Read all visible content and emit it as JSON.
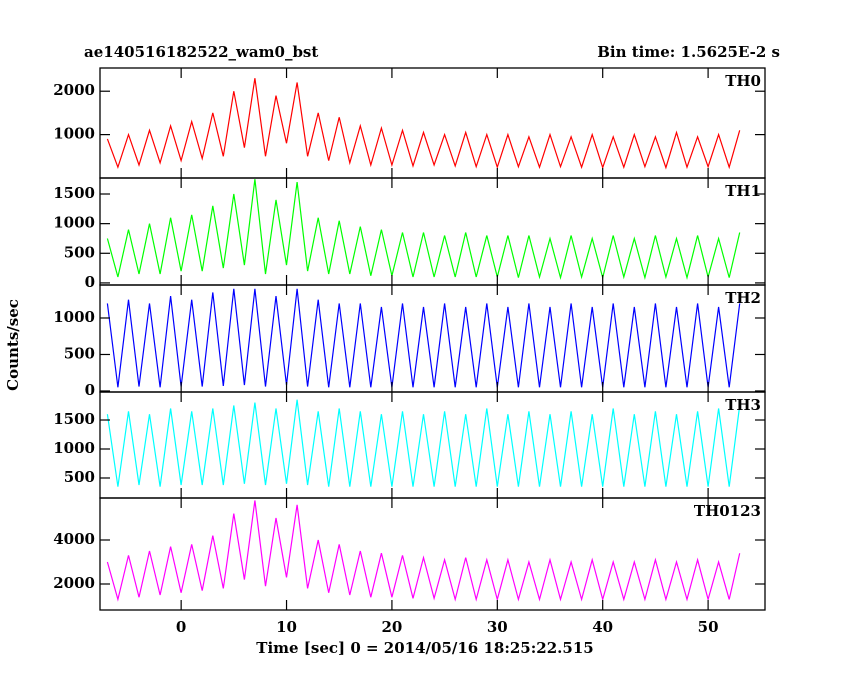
{
  "chart_data": {
    "type": "line",
    "title": "ae140516182522_wam0_bst",
    "subtitle": "Bin time: 1.5625E-2 s",
    "xlabel": "Time [sec] 0 = 2014/05/16 18:25:22.515",
    "ylabel": "Counts/sec",
    "xlim": [
      -7.7,
      55.4
    ],
    "xticks": [
      0,
      10,
      20,
      30,
      40,
      50
    ],
    "x": [
      -7,
      -6,
      -5,
      -4,
      -3,
      -2,
      -1,
      0,
      1,
      2,
      3,
      4,
      5,
      6,
      7,
      8,
      9,
      10,
      11,
      12,
      13,
      14,
      15,
      16,
      17,
      18,
      19,
      20,
      21,
      22,
      23,
      24,
      25,
      26,
      27,
      28,
      29,
      30,
      31,
      32,
      33,
      34,
      35,
      36,
      37,
      38,
      39,
      40,
      41,
      42,
      43,
      44,
      45,
      46,
      47,
      48,
      49,
      50,
      51,
      52,
      53
    ],
    "series": [
      {
        "name": "TH0",
        "color": "#ff0000",
        "ylim": [
          0,
          2535
        ],
        "yticks": [
          1000,
          2000
        ],
        "values": [
          900,
          250,
          1000,
          300,
          1100,
          350,
          1200,
          400,
          1300,
          450,
          1500,
          500,
          2000,
          700,
          2300,
          500,
          1900,
          800,
          2200,
          500,
          1500,
          400,
          1400,
          350,
          1200,
          300,
          1150,
          300,
          1100,
          280,
          1050,
          300,
          1000,
          280,
          1050,
          260,
          1000,
          250,
          1000,
          260,
          950,
          250,
          1000,
          260,
          950,
          250,
          1000,
          240,
          950,
          250,
          1000,
          260,
          950,
          240,
          1050,
          250,
          950,
          260,
          1000,
          250,
          1100
        ]
      },
      {
        "name": "TH1",
        "color": "#00ff00",
        "ylim": [
          -35,
          1770
        ],
        "yticks": [
          0,
          500,
          1000,
          1500
        ],
        "values": [
          750,
          100,
          900,
          150,
          1000,
          150,
          1100,
          200,
          1150,
          200,
          1300,
          250,
          1500,
          300,
          1750,
          150,
          1400,
          300,
          1700,
          200,
          1100,
          150,
          1050,
          150,
          950,
          120,
          900,
          120,
          850,
          100,
          850,
          100,
          800,
          100,
          850,
          100,
          800,
          100,
          800,
          90,
          800,
          100,
          750,
          90,
          800,
          100,
          750,
          90,
          800,
          100,
          750,
          90,
          800,
          100,
          750,
          90,
          800,
          100,
          750,
          90,
          850
        ]
      },
      {
        "name": "TH2",
        "color": "#0000ff",
        "ylim": [
          -14,
          1452
        ],
        "yticks": [
          0,
          500,
          1000
        ],
        "values": [
          1200,
          50,
          1250,
          60,
          1200,
          50,
          1300,
          60,
          1250,
          60,
          1350,
          70,
          1400,
          80,
          1400,
          60,
          1300,
          80,
          1400,
          60,
          1250,
          50,
          1200,
          50,
          1200,
          50,
          1150,
          50,
          1200,
          50,
          1150,
          50,
          1200,
          50,
          1150,
          50,
          1200,
          50,
          1150,
          50,
          1200,
          50,
          1150,
          50,
          1200,
          50,
          1150,
          50,
          1200,
          50,
          1150,
          50,
          1200,
          50,
          1150,
          50,
          1200,
          50,
          1150,
          50,
          1200
        ]
      },
      {
        "name": "TH3",
        "color": "#00ffff",
        "ylim": [
          155,
          1983
        ],
        "yticks": [
          500,
          1000,
          1500
        ],
        "values": [
          1600,
          350,
          1650,
          380,
          1600,
          350,
          1700,
          380,
          1650,
          380,
          1700,
          380,
          1750,
          400,
          1800,
          380,
          1700,
          400,
          1850,
          380,
          1650,
          350,
          1700,
          350,
          1650,
          350,
          1600,
          350,
          1650,
          350,
          1600,
          350,
          1650,
          350,
          1600,
          350,
          1700,
          350,
          1600,
          350,
          1650,
          350,
          1600,
          350,
          1650,
          350,
          1600,
          350,
          1700,
          350,
          1600,
          350,
          1650,
          350,
          1600,
          350,
          1650,
          350,
          1700,
          350,
          1750
        ]
      },
      {
        "name": "TH0123",
        "color": "#ff00ff",
        "ylim": [
          818,
          5909
        ],
        "yticks": [
          2000,
          4000
        ],
        "values": [
          3000,
          1300,
          3300,
          1400,
          3500,
          1500,
          3700,
          1600,
          3800,
          1700,
          4200,
          1800,
          5200,
          2200,
          5800,
          1900,
          5000,
          2300,
          5600,
          1800,
          4000,
          1600,
          3800,
          1500,
          3500,
          1400,
          3400,
          1400,
          3300,
          1350,
          3200,
          1350,
          3100,
          1300,
          3200,
          1300,
          3100,
          1300,
          3100,
          1300,
          3000,
          1300,
          3100,
          1300,
          3000,
          1300,
          3100,
          1300,
          3000,
          1300,
          3000,
          1300,
          3100,
          1300,
          3000,
          1300,
          3100,
          1300,
          3000,
          1300,
          3400
        ]
      }
    ]
  }
}
